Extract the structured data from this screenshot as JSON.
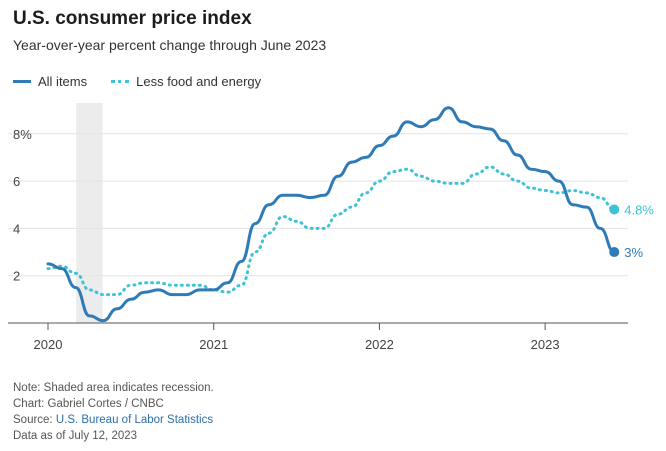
{
  "header": {
    "title": "U.S. consumer price index",
    "subtitle": "Year-over-year percent change through June 2023"
  },
  "legend": {
    "all_items": "All items",
    "less_food_energy": "Less food and energy"
  },
  "footer": {
    "note": "Note: Shaded area indicates recession.",
    "chart_credit": "Chart: Gabriel Cortes / CNBC",
    "source_prefix": "Source: ",
    "source_link": "U.S. Bureau of Labor Statistics",
    "data_as_of": "Data as of July 12, 2023"
  },
  "colors": {
    "all_items": "#2e7bb8",
    "less_food_energy": "#3cc3d8",
    "recession": "#ececec",
    "grid": "#e3e3e3",
    "axis": "#555555"
  },
  "chart_data": {
    "type": "line",
    "title": "U.S. consumer price index",
    "subtitle": "Year-over-year percent change through June 2023",
    "xlabel": "",
    "ylabel": "",
    "x_ticks": [
      2020,
      2021,
      2022,
      2023
    ],
    "y_ticks": [
      2,
      4,
      6,
      8
    ],
    "y_tick_labels": [
      "2",
      "4",
      "6",
      "8%"
    ],
    "xlim": [
      2020.0,
      2023.5
    ],
    "ylim": [
      0,
      9.3
    ],
    "grid": true,
    "legend_position": "top-left",
    "recession_shading": [
      2020.17,
      2020.33
    ],
    "x": [
      2020.0,
      2020.083,
      2020.167,
      2020.25,
      2020.333,
      2020.417,
      2020.5,
      2020.583,
      2020.667,
      2020.75,
      2020.833,
      2020.917,
      2021.0,
      2021.083,
      2021.167,
      2021.25,
      2021.333,
      2021.417,
      2021.5,
      2021.583,
      2021.667,
      2021.75,
      2021.833,
      2021.917,
      2022.0,
      2022.083,
      2022.167,
      2022.25,
      2022.333,
      2022.417,
      2022.5,
      2022.583,
      2022.667,
      2022.75,
      2022.833,
      2022.917,
      2023.0,
      2023.083,
      2023.167,
      2023.25,
      2023.333,
      2023.417
    ],
    "series": [
      {
        "name": "All items",
        "end_label": "3%",
        "values": [
          2.5,
          2.3,
          1.5,
          0.3,
          0.1,
          0.6,
          1.0,
          1.3,
          1.4,
          1.2,
          1.2,
          1.4,
          1.4,
          1.7,
          2.6,
          4.2,
          5.0,
          5.4,
          5.4,
          5.3,
          5.4,
          6.2,
          6.8,
          7.0,
          7.5,
          7.9,
          8.5,
          8.3,
          8.6,
          9.1,
          8.5,
          8.3,
          8.2,
          7.7,
          7.1,
          6.5,
          6.4,
          6.0,
          5.0,
          4.9,
          4.0,
          3.0
        ]
      },
      {
        "name": "Less food and energy",
        "end_label": "4.8%",
        "values": [
          2.3,
          2.4,
          2.1,
          1.4,
          1.2,
          1.2,
          1.6,
          1.7,
          1.7,
          1.6,
          1.6,
          1.6,
          1.4,
          1.3,
          1.6,
          3.0,
          3.8,
          4.5,
          4.3,
          4.0,
          4.0,
          4.6,
          4.9,
          5.5,
          6.0,
          6.4,
          6.5,
          6.2,
          6.0,
          5.9,
          5.9,
          6.3,
          6.6,
          6.3,
          6.0,
          5.7,
          5.6,
          5.5,
          5.6,
          5.5,
          5.3,
          4.8
        ]
      }
    ]
  }
}
